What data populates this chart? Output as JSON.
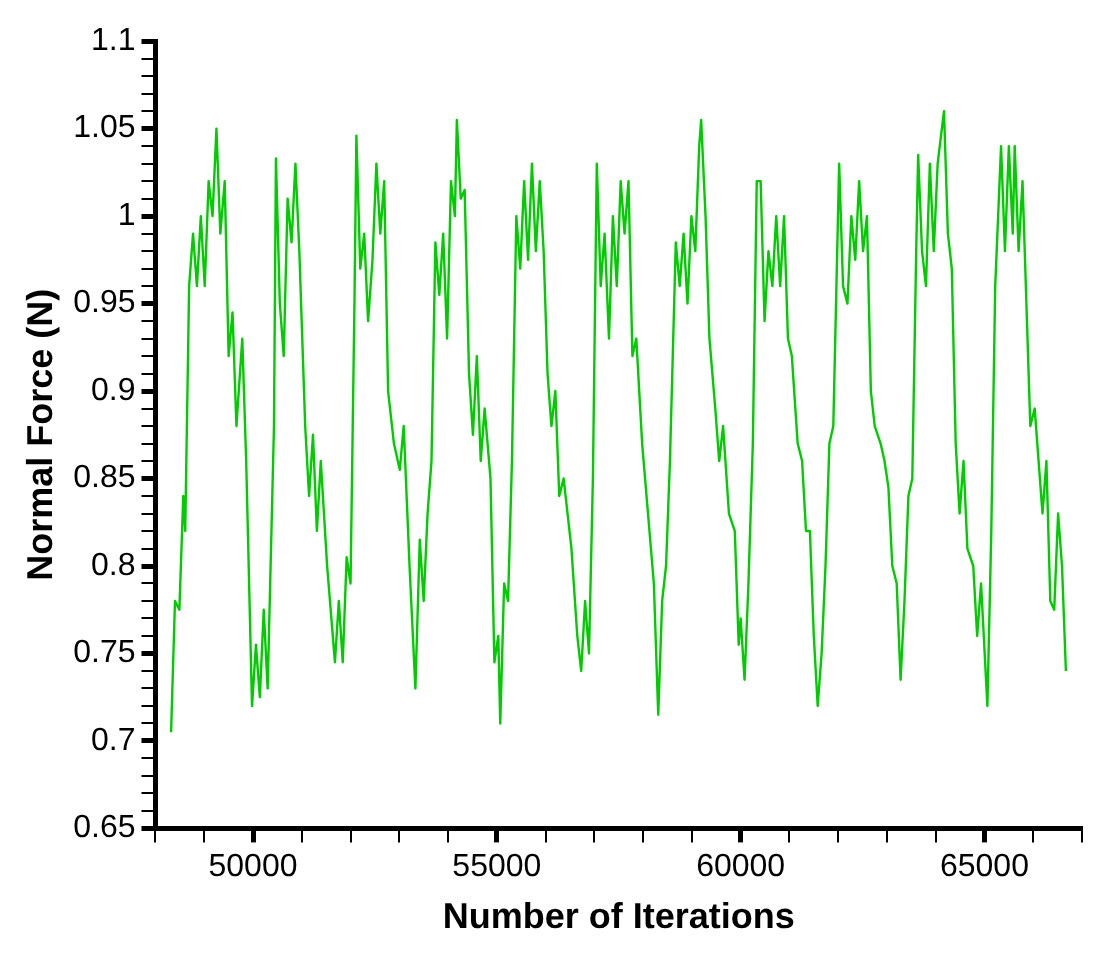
{
  "chart_data": {
    "type": "line",
    "xlabel": "Number of Iterations",
    "ylabel": "Normal Force (N)",
    "xlim": [
      48000,
      67000
    ],
    "xticks": [
      {
        "value": 48000,
        "label": null
      },
      {
        "value": 49000,
        "label": null
      },
      50000,
      {
        "value": 51000,
        "label": null
      },
      {
        "value": 52000,
        "label": null
      },
      {
        "value": 53000,
        "label": null
      },
      {
        "value": 54000,
        "label": null
      },
      55000,
      {
        "value": 56000,
        "label": null
      },
      {
        "value": 57000,
        "label": null
      },
      {
        "value": 58000,
        "label": null
      },
      {
        "value": 59000,
        "label": null
      },
      60000,
      {
        "value": 61000,
        "label": null
      },
      {
        "value": 62000,
        "label": null
      },
      {
        "value": 63000,
        "label": null
      },
      {
        "value": 64000,
        "label": null
      },
      65000,
      {
        "value": 66000,
        "label": null
      },
      {
        "value": 67000,
        "label": null
      }
    ],
    "ylim": [
      0.65,
      1.1
    ],
    "yticks": [
      0.65,
      {
        "value": 0.66,
        "label": null
      },
      {
        "value": 0.67,
        "label": null
      },
      {
        "value": 0.68,
        "label": null
      },
      {
        "value": 0.69,
        "label": null
      },
      0.7,
      {
        "value": 0.71,
        "label": null
      },
      {
        "value": 0.72,
        "label": null
      },
      {
        "value": 0.73,
        "label": null
      },
      {
        "value": 0.74,
        "label": null
      },
      0.75,
      {
        "value": 0.76,
        "label": null
      },
      {
        "value": 0.77,
        "label": null
      },
      {
        "value": 0.78,
        "label": null
      },
      {
        "value": 0.79,
        "label": null
      },
      0.8,
      {
        "value": 0.81,
        "label": null
      },
      {
        "value": 0.82,
        "label": null
      },
      {
        "value": 0.83,
        "label": null
      },
      {
        "value": 0.84,
        "label": null
      },
      0.85,
      {
        "value": 0.86,
        "label": null
      },
      {
        "value": 0.87,
        "label": null
      },
      {
        "value": 0.88,
        "label": null
      },
      {
        "value": 0.89,
        "label": null
      },
      0.9,
      {
        "value": 0.91,
        "label": null
      },
      {
        "value": 0.92,
        "label": null
      },
      {
        "value": 0.93,
        "label": null
      },
      {
        "value": 0.94,
        "label": null
      },
      0.95,
      {
        "value": 0.96,
        "label": null
      },
      {
        "value": 0.97,
        "label": null
      },
      {
        "value": 0.98,
        "label": null
      },
      {
        "value": 0.99,
        "label": null
      },
      1,
      {
        "value": 1.01,
        "label": null
      },
      {
        "value": 1.02,
        "label": null
      },
      {
        "value": 1.03,
        "label": null
      },
      {
        "value": 1.04,
        "label": null
      },
      1.05,
      {
        "value": 1.06,
        "label": null
      },
      {
        "value": 1.07,
        "label": null
      },
      {
        "value": 1.08,
        "label": null
      },
      {
        "value": 1.09,
        "label": null
      },
      1.1
    ],
    "grid": false,
    "legend": false,
    "marker": "none",
    "line_style": "solid",
    "series": [
      {
        "color": "#00cc00",
        "x": [
          48320,
          48400,
          48490,
          48570,
          48610,
          48690,
          48770,
          48850,
          48930,
          49010,
          49090,
          49170,
          49250,
          49330,
          49420,
          49500,
          49580,
          49660,
          49780,
          49860,
          49980,
          50060,
          50140,
          50220,
          50300,
          50430,
          50470,
          50550,
          50630,
          50710,
          50790,
          50870,
          50950,
          51070,
          51150,
          51230,
          51310,
          51390,
          51520,
          51680,
          51760,
          51840,
          51920,
          52000,
          52080,
          52120,
          52200,
          52280,
          52360,
          52450,
          52530,
          52610,
          52690,
          52770,
          52890,
          53010,
          53090,
          53210,
          53330,
          53420,
          53500,
          53580,
          53660,
          53740,
          53820,
          53900,
          53980,
          54060,
          54140,
          54180,
          54260,
          54340,
          54430,
          54510,
          54590,
          54670,
          54750,
          54870,
          54950,
          55030,
          55070,
          55150,
          55230,
          55310,
          55400,
          55480,
          55560,
          55640,
          55720,
          55800,
          55880,
          55960,
          56040,
          56120,
          56200,
          56280,
          56370,
          56530,
          56650,
          56730,
          56810,
          56890,
          56970,
          57050,
          57130,
          57210,
          57300,
          57380,
          57460,
          57540,
          57620,
          57700,
          57780,
          57860,
          57980,
          58100,
          58220,
          58310,
          58390,
          58470,
          58550,
          58670,
          58750,
          58830,
          58910,
          58990,
          59070,
          59150,
          59190,
          59280,
          59360,
          59480,
          59560,
          59640,
          59760,
          59880,
          59960,
          60000,
          60080,
          60160,
          60250,
          60330,
          60410,
          60490,
          60570,
          60650,
          60730,
          60810,
          60890,
          60970,
          61050,
          61170,
          61260,
          61340,
          61420,
          61500,
          61580,
          61660,
          61740,
          61820,
          61900,
          61980,
          62020,
          62100,
          62190,
          62270,
          62350,
          62430,
          62510,
          62590,
          62670,
          62750,
          62870,
          62950,
          63030,
          63110,
          63200,
          63280,
          63360,
          63440,
          63520,
          63600,
          63640,
          63720,
          63800,
          63880,
          63960,
          64040,
          64170,
          64250,
          64330,
          64410,
          64490,
          64570,
          64650,
          64770,
          64850,
          64930,
          65060,
          65140,
          65220,
          65340,
          65420,
          65500,
          65580,
          65620,
          65700,
          65780,
          65860,
          65940,
          66030,
          66110,
          66190,
          66270,
          66350,
          66430,
          66510,
          66590,
          66670
        ],
        "values": [
          0.705,
          0.78,
          0.775,
          0.84,
          0.82,
          0.96,
          0.99,
          0.96,
          1.0,
          0.96,
          1.02,
          1.0,
          1.05,
          0.99,
          1.02,
          0.92,
          0.945,
          0.88,
          0.93,
          0.86,
          0.72,
          0.755,
          0.725,
          0.775,
          0.73,
          0.88,
          1.033,
          0.95,
          0.92,
          1.01,
          0.985,
          1.03,
          0.98,
          0.88,
          0.84,
          0.875,
          0.82,
          0.86,
          0.8,
          0.745,
          0.78,
          0.745,
          0.805,
          0.79,
          0.95,
          1.046,
          0.97,
          0.99,
          0.94,
          0.975,
          1.03,
          0.99,
          1.02,
          0.9,
          0.87,
          0.855,
          0.88,
          0.8,
          0.73,
          0.815,
          0.78,
          0.83,
          0.86,
          0.985,
          0.955,
          0.99,
          0.93,
          1.02,
          1.0,
          1.055,
          1.01,
          1.015,
          0.91,
          0.875,
          0.92,
          0.86,
          0.89,
          0.85,
          0.745,
          0.76,
          0.71,
          0.79,
          0.78,
          0.86,
          1.0,
          0.97,
          1.02,
          0.975,
          1.03,
          0.98,
          1.02,
          0.98,
          0.91,
          0.88,
          0.9,
          0.84,
          0.85,
          0.81,
          0.76,
          0.74,
          0.78,
          0.75,
          0.85,
          1.03,
          0.96,
          0.99,
          0.93,
          1.0,
          0.96,
          1.02,
          0.99,
          1.02,
          0.92,
          0.93,
          0.87,
          0.83,
          0.79,
          0.715,
          0.78,
          0.8,
          0.86,
          0.985,
          0.96,
          0.99,
          0.95,
          1.0,
          0.98,
          1.04,
          1.055,
          1.0,
          0.93,
          0.89,
          0.86,
          0.88,
          0.83,
          0.82,
          0.755,
          0.77,
          0.735,
          0.79,
          0.87,
          1.02,
          1.02,
          0.94,
          0.98,
          0.96,
          1.0,
          0.96,
          1.0,
          0.93,
          0.92,
          0.87,
          0.86,
          0.82,
          0.82,
          0.76,
          0.72,
          0.75,
          0.8,
          0.87,
          0.88,
          0.98,
          1.03,
          0.96,
          0.95,
          1.0,
          0.975,
          1.02,
          0.98,
          1.0,
          0.9,
          0.88,
          0.87,
          0.86,
          0.845,
          0.8,
          0.79,
          0.735,
          0.78,
          0.84,
          0.85,
          0.98,
          1.035,
          0.98,
          0.96,
          1.03,
          0.98,
          1.03,
          1.06,
          0.99,
          0.97,
          0.87,
          0.83,
          0.86,
          0.81,
          0.8,
          0.76,
          0.79,
          0.72,
          0.82,
          0.96,
          1.04,
          0.98,
          1.04,
          0.99,
          1.04,
          0.98,
          1.02,
          0.95,
          0.88,
          0.89,
          0.86,
          0.83,
          0.86,
          0.78,
          0.775,
          0.83,
          0.8,
          0.74
        ]
      }
    ]
  }
}
